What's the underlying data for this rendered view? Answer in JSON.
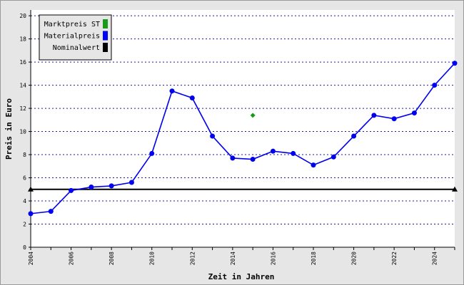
{
  "chart_data": {
    "type": "line",
    "xlabel": "Zeit in Jahren",
    "ylabel": "Preis in Euro",
    "xlim": [
      2004,
      2025
    ],
    "ylim": [
      0,
      20.5
    ],
    "x_ticks": [
      2004,
      2006,
      2008,
      2010,
      2012,
      2014,
      2016,
      2018,
      2020,
      2022,
      2024
    ],
    "y_ticks": [
      0,
      2,
      4,
      6,
      8,
      10,
      12,
      14,
      16,
      18,
      20
    ],
    "grid": "horizontal dotted",
    "legend_position": "top-left",
    "legend": [
      {
        "label": "Marktpreis ST",
        "color": "#1a9a1a"
      },
      {
        "label": "Materialpreis",
        "color": "#0000ee"
      },
      {
        "label": "Nominalwert",
        "color": "#000000"
      }
    ],
    "series": [
      {
        "name": "Materialpreis",
        "color": "#0000ee",
        "points": [
          [
            2004,
            2.9
          ],
          [
            2005,
            3.1
          ],
          [
            2006,
            4.9
          ],
          [
            2007,
            5.2
          ],
          [
            2008,
            5.3
          ],
          [
            2009,
            5.6
          ],
          [
            2010,
            8.1
          ],
          [
            2011,
            13.5
          ],
          [
            2012,
            12.9
          ],
          [
            2013,
            9.6
          ],
          [
            2014,
            7.7
          ],
          [
            2015,
            7.6
          ],
          [
            2016,
            8.3
          ],
          [
            2017,
            8.1
          ],
          [
            2018,
            7.1
          ],
          [
            2019,
            7.8
          ],
          [
            2020,
            9.6
          ],
          [
            2021,
            11.4
          ],
          [
            2022,
            11.1
          ],
          [
            2023,
            11.6
          ],
          [
            2024,
            14.0
          ],
          [
            2025,
            15.9
          ]
        ]
      },
      {
        "name": "Marktpreis ST",
        "color": "#1a9a1a",
        "points": [
          [
            2015,
            11.4
          ]
        ]
      },
      {
        "name": "Nominalwert",
        "color": "#000000",
        "points": [
          [
            2004,
            5.0
          ],
          [
            2025,
            5.0
          ]
        ]
      }
    ]
  }
}
